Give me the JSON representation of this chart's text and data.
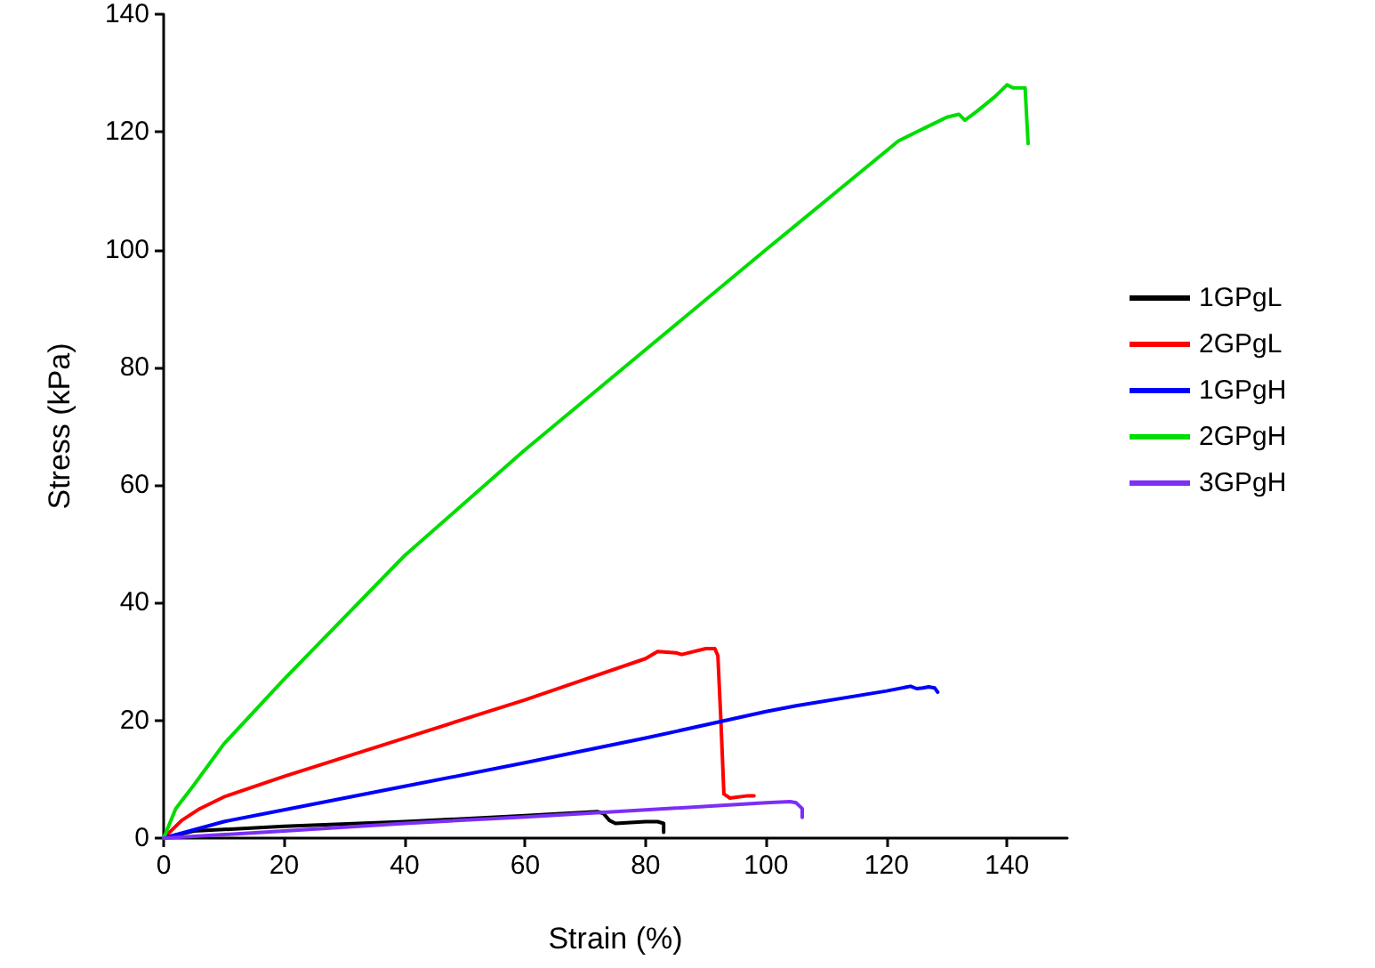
{
  "chart_data": {
    "type": "line",
    "xlabel": "Strain (%)",
    "ylabel": "Stress (kPa)",
    "xlim": [
      0,
      150
    ],
    "xticks": [
      0,
      20,
      40,
      60,
      80,
      100,
      120,
      140
    ],
    "ylim": [
      0,
      140
    ],
    "yticks": [
      0,
      20,
      40,
      60,
      80,
      100,
      120,
      140
    ],
    "grid": false,
    "legend": "right",
    "marker": "none",
    "line_style": "solid",
    "series": [
      {
        "name": "1GPgL",
        "color": "#000000",
        "x": [
          0,
          5,
          20,
          40,
          60,
          72,
          73,
          74,
          75,
          80,
          82,
          83,
          83
        ],
        "values": [
          0,
          1.2,
          2,
          2.8,
          3.8,
          4.5,
          4.2,
          3,
          2.5,
          2.8,
          2.8,
          2.5,
          1
        ]
      },
      {
        "name": "2GPgL",
        "color": "#ff0000",
        "x": [
          0,
          3,
          6,
          10,
          20,
          40,
          60,
          80,
          82,
          85,
          86,
          90,
          91.5,
          92,
          92.5,
          93,
          94,
          97,
          98
        ],
        "values": [
          0,
          3,
          5,
          7,
          10.5,
          17,
          23.5,
          30.5,
          31.7,
          31.5,
          31.2,
          32.2,
          32.2,
          31,
          20,
          7.5,
          6.8,
          7.2,
          7.2
        ]
      },
      {
        "name": "1GPgH",
        "color": "#0000ff",
        "x": [
          0,
          10,
          20,
          40,
          60,
          80,
          100,
          105,
          120,
          124,
          125,
          126,
          127,
          128,
          128.5
        ],
        "values": [
          0,
          2.8,
          4.8,
          8.8,
          12.8,
          17,
          21.5,
          22.5,
          25,
          25.8,
          25.4,
          25.5,
          25.7,
          25.5,
          24.8
        ]
      },
      {
        "name": "2GPgH",
        "color": "#00dd00",
        "x": [
          0,
          2,
          5,
          10,
          20,
          40,
          60,
          80,
          100,
          122,
          125,
          128,
          130,
          132,
          133,
          135,
          138,
          140,
          141,
          143,
          143.5
        ],
        "values": [
          0,
          5,
          9,
          16,
          27,
          48,
          66,
          83,
          100,
          118.5,
          120,
          121.5,
          122.5,
          123,
          122,
          123.5,
          126,
          128,
          127.5,
          127.5,
          118
        ]
      },
      {
        "name": "3GPgH",
        "color": "#7b2ff7",
        "x": [
          0,
          20,
          40,
          60,
          80,
          100,
          104,
          105,
          106,
          106
        ],
        "values": [
          0,
          1.2,
          2.5,
          3.6,
          4.8,
          6,
          6.2,
          6,
          5,
          3.5
        ]
      }
    ]
  }
}
